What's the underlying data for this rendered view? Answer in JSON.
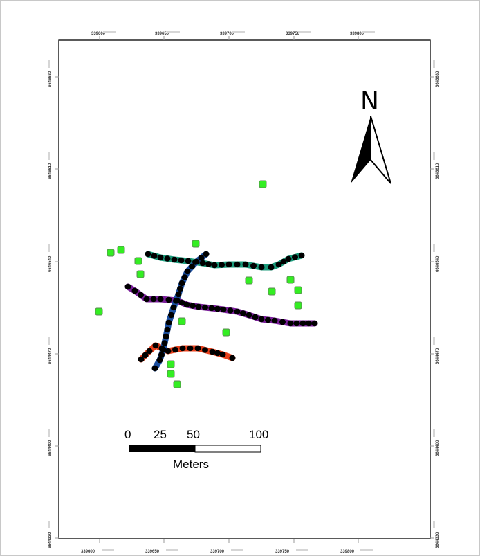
{
  "map": {
    "x_ticks": [
      "339600",
      "339650",
      "339700",
      "339750",
      "339800"
    ],
    "y_ticks": [
      "6646630",
      "6646610",
      "6646540",
      "6644470",
      "6644400",
      "6644330"
    ],
    "north_arrow": {
      "letter": "N"
    },
    "scale_bar": {
      "labels": [
        "0",
        "25",
        "50",
        "100"
      ],
      "unit": "Meters"
    },
    "colors": {
      "frame": "#000000",
      "points": "#33ee22",
      "route_teal": "#1a9a7a",
      "route_blue": "#1c4fa0",
      "route_purple": "#7a1f9a",
      "route_red": "#e8401c",
      "vertex": "#000000"
    },
    "legend_note": ""
  }
}
